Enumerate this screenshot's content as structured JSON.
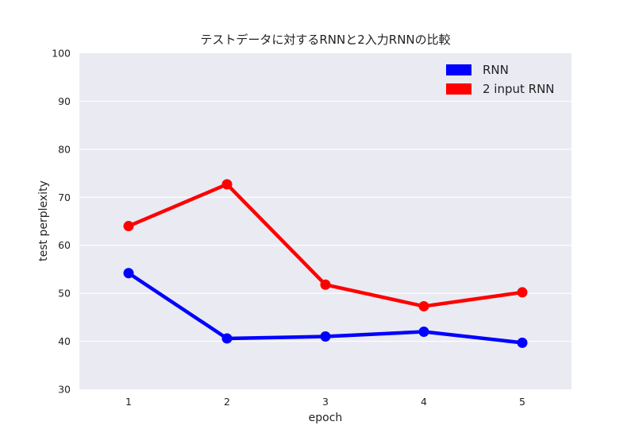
{
  "chart_data": {
    "type": "line",
    "title": "テストデータに対するRNNと2入力RNNの比較",
    "xlabel": "epoch",
    "ylabel": "test perplexity",
    "categories": [
      "1",
      "2",
      "3",
      "4",
      "5"
    ],
    "ylim": [
      30,
      100
    ],
    "yticks": [
      30,
      40,
      50,
      60,
      70,
      80,
      90,
      100
    ],
    "grid": true,
    "legend_position": "top-right",
    "series": [
      {
        "name": "RNN",
        "color": "#0000ff",
        "values": [
          54.2,
          40.6,
          41.0,
          42.0,
          39.7
        ]
      },
      {
        "name": "2 input RNN",
        "color": "#ff0000",
        "values": [
          64.0,
          72.7,
          51.8,
          47.3,
          50.2
        ]
      }
    ]
  }
}
